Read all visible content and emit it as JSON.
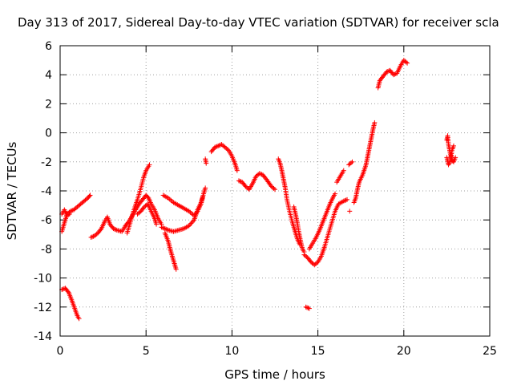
{
  "chart_data": {
    "type": "scatter",
    "title": "Day 313 of 2017, Sidereal Day-to-day VTEC variation (SDTVAR) for receiver scla",
    "xlabel": "GPS time / hours",
    "ylabel": "SDTVAR / TECUs",
    "xlim": [
      0,
      25
    ],
    "ylim": [
      -14,
      6
    ],
    "xticks": [
      0,
      5,
      10,
      15,
      20,
      25
    ],
    "yticks": [
      -14,
      -12,
      -10,
      -8,
      -6,
      -4,
      -2,
      0,
      2,
      4,
      6
    ],
    "grid": true,
    "marker": "+",
    "color": "#ff0000",
    "series": [
      {
        "segments": [
          [
            [
              0.1,
              -6.8
            ],
            [
              0.25,
              -6.2
            ],
            [
              0.4,
              -5.6
            ],
            [
              0.6,
              -5.4
            ],
            [
              0.8,
              -5.3
            ],
            [
              1.0,
              -5.1
            ],
            [
              1.2,
              -4.9
            ],
            [
              1.4,
              -4.7
            ],
            [
              1.6,
              -4.5
            ],
            [
              1.75,
              -4.3
            ]
          ],
          [
            [
              0.1,
              -5.6
            ],
            [
              0.25,
              -5.3
            ],
            [
              0.4,
              -5.7
            ],
            [
              0.55,
              -5.6
            ]
          ],
          [
            [
              0.1,
              -10.8
            ],
            [
              0.3,
              -10.7
            ],
            [
              0.5,
              -11.0
            ],
            [
              0.7,
              -11.6
            ],
            [
              0.85,
              -12.1
            ],
            [
              1.0,
              -12.6
            ],
            [
              1.1,
              -12.8
            ]
          ],
          [
            [
              1.8,
              -7.2
            ],
            [
              2.0,
              -7.1
            ],
            [
              2.2,
              -6.9
            ],
            [
              2.4,
              -6.6
            ],
            [
              2.6,
              -6.1
            ],
            [
              2.75,
              -5.8
            ],
            [
              2.9,
              -6.3
            ],
            [
              3.1,
              -6.6
            ],
            [
              3.3,
              -6.7
            ],
            [
              3.6,
              -6.8
            ],
            [
              3.8,
              -6.4
            ],
            [
              4.0,
              -6.1
            ],
            [
              4.2,
              -5.7
            ],
            [
              4.4,
              -5.3
            ],
            [
              4.6,
              -4.9
            ],
            [
              4.8,
              -4.6
            ],
            [
              5.0,
              -4.3
            ],
            [
              5.15,
              -4.5
            ],
            [
              5.3,
              -4.9
            ],
            [
              5.5,
              -5.3
            ],
            [
              5.7,
              -5.9
            ],
            [
              5.9,
              -6.3
            ]
          ],
          [
            [
              3.9,
              -6.9
            ],
            [
              4.1,
              -6.1
            ],
            [
              4.3,
              -5.3
            ],
            [
              4.5,
              -4.6
            ],
            [
              4.7,
              -3.8
            ],
            [
              4.85,
              -3.1
            ],
            [
              5.0,
              -2.6
            ],
            [
              5.15,
              -2.3
            ],
            [
              5.2,
              -2.2
            ]
          ],
          [
            [
              4.5,
              -5.6
            ],
            [
              4.7,
              -5.4
            ],
            [
              4.9,
              -5.1
            ],
            [
              5.1,
              -4.9
            ],
            [
              5.3,
              -5.4
            ],
            [
              5.5,
              -5.9
            ],
            [
              5.6,
              -6.3
            ]
          ],
          [
            [
              6.0,
              -4.3
            ],
            [
              6.3,
              -4.5
            ],
            [
              6.6,
              -4.8
            ],
            [
              6.9,
              -5.0
            ],
            [
              7.2,
              -5.2
            ],
            [
              7.5,
              -5.4
            ],
            [
              7.8,
              -5.7
            ],
            [
              8.0,
              -5.4
            ],
            [
              8.2,
              -4.9
            ],
            [
              8.35,
              -4.2
            ],
            [
              8.45,
              -3.8
            ]
          ],
          [
            [
              5.9,
              -6.5
            ],
            [
              6.1,
              -6.6
            ],
            [
              6.3,
              -6.7
            ],
            [
              6.6,
              -6.8
            ],
            [
              6.9,
              -6.7
            ],
            [
              7.2,
              -6.6
            ],
            [
              7.5,
              -6.4
            ],
            [
              7.8,
              -6.0
            ],
            [
              8.0,
              -5.3
            ],
            [
              8.2,
              -4.8
            ],
            [
              8.3,
              -4.4
            ]
          ],
          [
            [
              6.1,
              -6.9
            ],
            [
              6.3,
              -7.5
            ],
            [
              6.4,
              -8.0
            ],
            [
              6.55,
              -8.6
            ],
            [
              6.7,
              -9.2
            ],
            [
              6.75,
              -9.4
            ]
          ],
          [
            [
              8.45,
              -1.8
            ],
            [
              8.5,
              -2.1
            ]
          ],
          [
            [
              8.8,
              -1.3
            ],
            [
              9.0,
              -1.0
            ],
            [
              9.2,
              -0.9
            ],
            [
              9.4,
              -0.8
            ],
            [
              9.6,
              -1.0
            ],
            [
              9.8,
              -1.2
            ],
            [
              10.0,
              -1.6
            ],
            [
              10.2,
              -2.2
            ],
            [
              10.3,
              -2.6
            ]
          ],
          [
            [
              10.4,
              -3.3
            ],
            [
              10.6,
              -3.4
            ],
            [
              10.8,
              -3.7
            ],
            [
              11.0,
              -3.9
            ],
            [
              11.2,
              -3.5
            ],
            [
              11.4,
              -3.0
            ],
            [
              11.6,
              -2.8
            ],
            [
              11.8,
              -2.9
            ],
            [
              12.0,
              -3.2
            ],
            [
              12.3,
              -3.7
            ],
            [
              12.5,
              -3.9
            ]
          ],
          [
            [
              12.7,
              -1.8
            ],
            [
              12.8,
              -2.1
            ],
            [
              12.9,
              -2.6
            ],
            [
              13.0,
              -3.2
            ],
            [
              13.1,
              -3.8
            ],
            [
              13.2,
              -4.6
            ],
            [
              13.35,
              -5.4
            ],
            [
              13.5,
              -6.1
            ],
            [
              13.65,
              -6.7
            ],
            [
              13.8,
              -7.3
            ],
            [
              13.95,
              -7.7
            ]
          ],
          [
            [
              13.6,
              -5.1
            ],
            [
              13.7,
              -5.6
            ],
            [
              13.8,
              -6.2
            ],
            [
              13.9,
              -6.9
            ],
            [
              14.0,
              -7.5
            ],
            [
              14.1,
              -8.0
            ],
            [
              14.2,
              -8.2
            ]
          ],
          [
            [
              14.2,
              -8.4
            ],
            [
              14.4,
              -8.6
            ],
            [
              14.6,
              -8.9
            ],
            [
              14.8,
              -9.1
            ],
            [
              15.0,
              -8.9
            ],
            [
              15.2,
              -8.5
            ],
            [
              15.4,
              -7.8
            ],
            [
              15.6,
              -7.0
            ],
            [
              15.8,
              -6.2
            ],
            [
              16.0,
              -5.4
            ],
            [
              16.2,
              -4.9
            ],
            [
              16.5,
              -4.7
            ],
            [
              16.7,
              -4.6
            ]
          ],
          [
            [
              14.5,
              -8.0
            ],
            [
              14.7,
              -7.6
            ],
            [
              14.9,
              -7.2
            ],
            [
              15.1,
              -6.7
            ],
            [
              15.3,
              -6.1
            ],
            [
              15.5,
              -5.5
            ],
            [
              15.7,
              -4.9
            ],
            [
              15.9,
              -4.4
            ],
            [
              16.0,
              -4.2
            ]
          ],
          [
            [
              14.3,
              -12.0
            ],
            [
              14.5,
              -12.1
            ]
          ],
          [
            [
              16.1,
              -3.4
            ],
            [
              16.3,
              -3.0
            ],
            [
              16.5,
              -2.6
            ]
          ],
          [
            [
              16.85,
              -5.4
            ]
          ],
          [
            [
              17.1,
              -4.8
            ],
            [
              17.2,
              -4.5
            ],
            [
              17.3,
              -3.9
            ],
            [
              17.4,
              -3.4
            ],
            [
              17.6,
              -2.9
            ],
            [
              17.8,
              -2.2
            ],
            [
              17.9,
              -1.6
            ],
            [
              18.0,
              -1.0
            ],
            [
              18.1,
              -0.4
            ],
            [
              18.2,
              0.2
            ],
            [
              18.3,
              0.7
            ]
          ],
          [
            [
              16.8,
              -2.2
            ],
            [
              17.0,
              -2.0
            ]
          ],
          [
            [
              18.5,
              3.1
            ],
            [
              18.6,
              3.6
            ],
            [
              18.8,
              3.9
            ],
            [
              19.0,
              4.2
            ],
            [
              19.2,
              4.3
            ],
            [
              19.4,
              4.0
            ],
            [
              19.6,
              4.1
            ],
            [
              19.8,
              4.6
            ],
            [
              20.0,
              5.0
            ],
            [
              20.2,
              4.8
            ]
          ],
          [
            [
              22.5,
              -0.5
            ],
            [
              22.55,
              -0.2
            ],
            [
              22.6,
              -0.8
            ],
            [
              22.7,
              -1.4
            ],
            [
              22.8,
              -1.9
            ],
            [
              22.9,
              -2.0
            ],
            [
              23.0,
              -1.7
            ]
          ],
          [
            [
              22.5,
              -1.7
            ],
            [
              22.6,
              -2.2
            ],
            [
              22.7,
              -2.0
            ],
            [
              22.8,
              -1.2
            ],
            [
              22.9,
              -0.9
            ]
          ]
        ]
      }
    ]
  }
}
